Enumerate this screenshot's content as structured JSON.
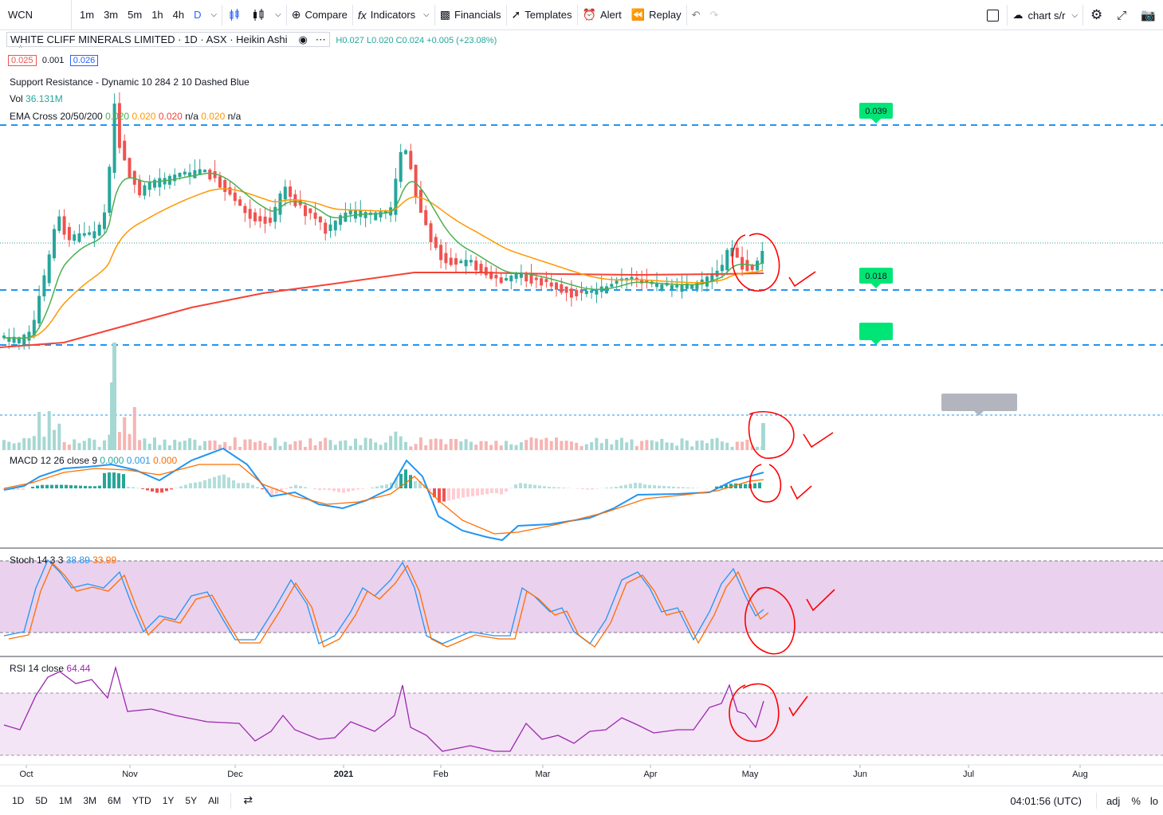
{
  "toolbar": {
    "symbol": "WCN",
    "intervals": [
      "1m",
      "3m",
      "5m",
      "1h",
      "4h",
      "D"
    ],
    "compare": "Compare",
    "indicators": "Indicators",
    "financials": "Financials",
    "templates": "Templates",
    "alert": "Alert",
    "replay": "Replay",
    "layout_name": "chart s/r"
  },
  "legend": {
    "title": "WHITE CLIFF MINERALS LIMITED · 1D · ASX · Heikin Ashi",
    "ohlc": "H0.027 L0.020 C0.024 +0.005 (+23.08%)",
    "bid": "0.025",
    "spread": "0.001",
    "ask": "0.026",
    "sr_indicator": "Support Resistance - Dynamic 10 284 2 10 Dashed Blue",
    "vol_label": "Vol",
    "vol_value": "36.131M",
    "ema_label": "EMA Cross 20/50/200",
    "ema_v1": "0.020",
    "ema_v2": "0.020",
    "ema_v3": "0.020",
    "ema_v4": "n/a",
    "ema_v5": "0.020",
    "ema_v6": "n/a",
    "macd_label": "MACD 12 26 close 9",
    "macd_v1": "0.000",
    "macd_v2": "0.001",
    "macd_v3": "0.000",
    "stoch_label": "Stoch 14 3 3",
    "stoch_k": "38.89",
    "stoch_d": "33.99",
    "rsi_label": "RSI 14 close",
    "rsi_value": "64.44"
  },
  "price_tags": {
    "resistance": "0.039",
    "support": "0.018"
  },
  "time_axis": [
    "Oct",
    "Nov",
    "Dec",
    "2021",
    "Feb",
    "Mar",
    "Apr",
    "May",
    "Jun",
    "Jul",
    "Aug"
  ],
  "bottombar": {
    "ranges": [
      "1D",
      "5D",
      "1M",
      "3M",
      "6M",
      "YTD",
      "1Y",
      "5Y",
      "All"
    ],
    "clock": "04:01:56 (UTC)",
    "adj": "adj",
    "percent": "%",
    "log": "lo"
  },
  "colors": {
    "bull": "#26a69a",
    "bear": "#ef5350",
    "ema20": "#4caf50",
    "ema50": "#ff9800",
    "ema200": "#f44336",
    "sr_line": "#2196f3",
    "macd_line": "#2196f3",
    "signal_line": "#ff6d00",
    "stoch_band": "#e1bee7",
    "rsi_line": "#9c27b0",
    "annotation": "#ff0000"
  }
}
